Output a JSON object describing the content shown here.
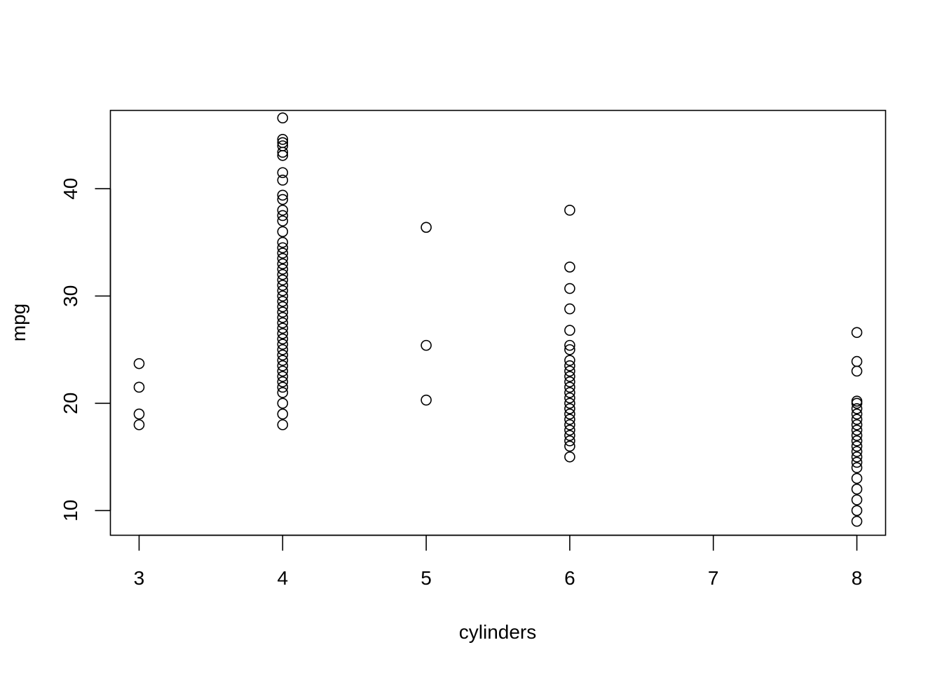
{
  "chart_data": {
    "type": "scatter",
    "title": "",
    "xlabel": "cylinders",
    "ylabel": "mpg",
    "xlim": [
      2.8,
      8.2
    ],
    "ylim": [
      7.7,
      47.3
    ],
    "x_ticks": [
      3,
      4,
      5,
      6,
      7,
      8
    ],
    "x_tick_labels": [
      "3",
      "4",
      "5",
      "6",
      "7",
      "8"
    ],
    "y_ticks": [
      10,
      20,
      30,
      40
    ],
    "y_tick_labels": [
      "10",
      "20",
      "30",
      "40"
    ],
    "grid": false,
    "legend": "none",
    "marker": "open-circle",
    "points": [
      {
        "x": 3,
        "y": 18
      },
      {
        "x": 3,
        "y": 19
      },
      {
        "x": 3,
        "y": 21.5
      },
      {
        "x": 3,
        "y": 23.7
      },
      {
        "x": 4,
        "y": 18
      },
      {
        "x": 4,
        "y": 19
      },
      {
        "x": 4,
        "y": 20
      },
      {
        "x": 4,
        "y": 21
      },
      {
        "x": 4,
        "y": 21.5
      },
      {
        "x": 4,
        "y": 22
      },
      {
        "x": 4,
        "y": 22.5
      },
      {
        "x": 4,
        "y": 23
      },
      {
        "x": 4,
        "y": 23.5
      },
      {
        "x": 4,
        "y": 24
      },
      {
        "x": 4,
        "y": 24.5
      },
      {
        "x": 4,
        "y": 25
      },
      {
        "x": 4,
        "y": 25.5
      },
      {
        "x": 4,
        "y": 26
      },
      {
        "x": 4,
        "y": 26.5
      },
      {
        "x": 4,
        "y": 27
      },
      {
        "x": 4,
        "y": 27.5
      },
      {
        "x": 4,
        "y": 28
      },
      {
        "x": 4,
        "y": 28.5
      },
      {
        "x": 4,
        "y": 29
      },
      {
        "x": 4,
        "y": 29.5
      },
      {
        "x": 4,
        "y": 30
      },
      {
        "x": 4,
        "y": 30.5
      },
      {
        "x": 4,
        "y": 31
      },
      {
        "x": 4,
        "y": 31.5
      },
      {
        "x": 4,
        "y": 32
      },
      {
        "x": 4,
        "y": 32.5
      },
      {
        "x": 4,
        "y": 33
      },
      {
        "x": 4,
        "y": 33.5
      },
      {
        "x": 4,
        "y": 34
      },
      {
        "x": 4,
        "y": 34.5
      },
      {
        "x": 4,
        "y": 35
      },
      {
        "x": 4,
        "y": 36
      },
      {
        "x": 4,
        "y": 37
      },
      {
        "x": 4,
        "y": 37.5
      },
      {
        "x": 4,
        "y": 38
      },
      {
        "x": 4,
        "y": 39
      },
      {
        "x": 4,
        "y": 39.4
      },
      {
        "x": 4,
        "y": 40.8
      },
      {
        "x": 4,
        "y": 41.5
      },
      {
        "x": 4,
        "y": 43.1
      },
      {
        "x": 4,
        "y": 43.4
      },
      {
        "x": 4,
        "y": 44
      },
      {
        "x": 4,
        "y": 44.3
      },
      {
        "x": 4,
        "y": 44.6
      },
      {
        "x": 4,
        "y": 46.6
      },
      {
        "x": 5,
        "y": 20.3
      },
      {
        "x": 5,
        "y": 25.4
      },
      {
        "x": 5,
        "y": 36.4
      },
      {
        "x": 6,
        "y": 15
      },
      {
        "x": 6,
        "y": 16
      },
      {
        "x": 6,
        "y": 16.5
      },
      {
        "x": 6,
        "y": 17
      },
      {
        "x": 6,
        "y": 17.5
      },
      {
        "x": 6,
        "y": 18
      },
      {
        "x": 6,
        "y": 18.5
      },
      {
        "x": 6,
        "y": 19
      },
      {
        "x": 6,
        "y": 19.5
      },
      {
        "x": 6,
        "y": 20
      },
      {
        "x": 6,
        "y": 20.5
      },
      {
        "x": 6,
        "y": 21
      },
      {
        "x": 6,
        "y": 21.5
      },
      {
        "x": 6,
        "y": 22
      },
      {
        "x": 6,
        "y": 22.5
      },
      {
        "x": 6,
        "y": 23
      },
      {
        "x": 6,
        "y": 23.5
      },
      {
        "x": 6,
        "y": 24
      },
      {
        "x": 6,
        "y": 25
      },
      {
        "x": 6,
        "y": 25.4
      },
      {
        "x": 6,
        "y": 26.8
      },
      {
        "x": 6,
        "y": 28.8
      },
      {
        "x": 6,
        "y": 30.7
      },
      {
        "x": 6,
        "y": 32.7
      },
      {
        "x": 6,
        "y": 38
      },
      {
        "x": 8,
        "y": 9
      },
      {
        "x": 8,
        "y": 10
      },
      {
        "x": 8,
        "y": 11
      },
      {
        "x": 8,
        "y": 12
      },
      {
        "x": 8,
        "y": 13
      },
      {
        "x": 8,
        "y": 14
      },
      {
        "x": 8,
        "y": 14.5
      },
      {
        "x": 8,
        "y": 15
      },
      {
        "x": 8,
        "y": 15.5
      },
      {
        "x": 8,
        "y": 16
      },
      {
        "x": 8,
        "y": 16.5
      },
      {
        "x": 8,
        "y": 17
      },
      {
        "x": 8,
        "y": 17.5
      },
      {
        "x": 8,
        "y": 18
      },
      {
        "x": 8,
        "y": 18.5
      },
      {
        "x": 8,
        "y": 19
      },
      {
        "x": 8,
        "y": 19.5
      },
      {
        "x": 8,
        "y": 20
      },
      {
        "x": 8,
        "y": 20.2
      },
      {
        "x": 8,
        "y": 23
      },
      {
        "x": 8,
        "y": 23.9
      },
      {
        "x": 8,
        "y": 26.6
      }
    ]
  }
}
